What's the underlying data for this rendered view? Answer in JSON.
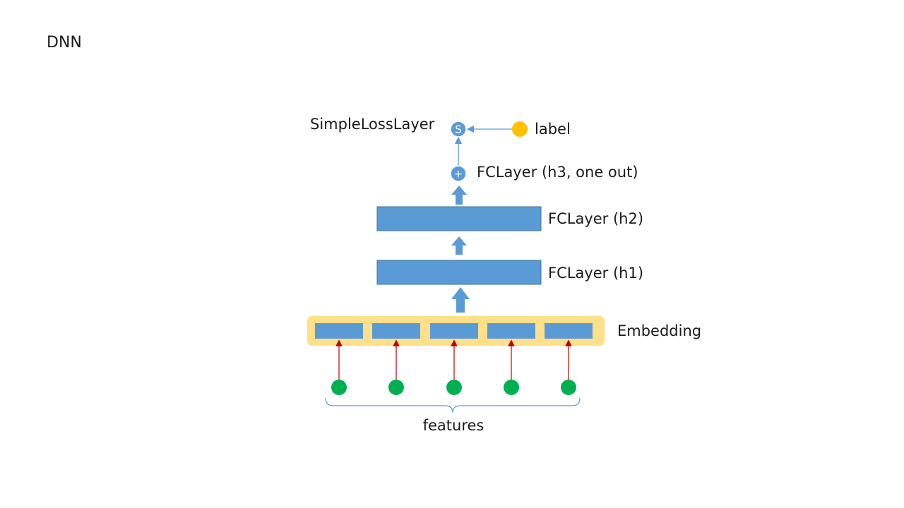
{
  "title": "DNN",
  "nodes": {
    "loss": {
      "label": "SimpleLossLayer",
      "symbol": "S"
    },
    "label_node": {
      "label": "label"
    },
    "h3": {
      "label": "FCLayer (h3, one out)",
      "symbol": "+"
    },
    "h2": {
      "label": "FCLayer (h2)"
    },
    "h1": {
      "label": "FCLayer (h1)"
    },
    "embedding": {
      "label": "Embedding",
      "slot_count": 5
    },
    "features": {
      "label": "features",
      "count": 5
    }
  },
  "colors": {
    "layer_fill": "#5b9bd5",
    "layer_stroke": "#41719c",
    "embedding_bg": "#ffe08a",
    "feature_node": "#00b050",
    "label_node": "#ffc000",
    "feature_arrow": "#c00000",
    "connector": "#5b9bd5"
  }
}
